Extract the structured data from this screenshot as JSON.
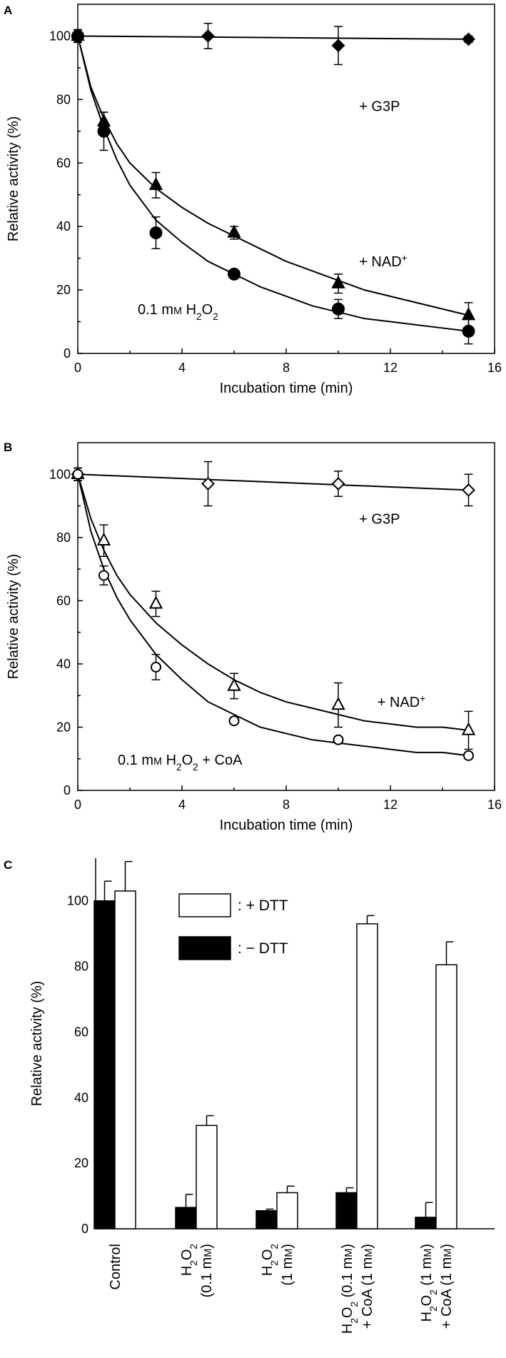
{
  "chart_data": [
    {
      "panel": "A",
      "type": "scatter",
      "xlabel": "Incubation time (min)",
      "ylabel": "Relative activity (%)",
      "xlim": [
        0,
        16
      ],
      "ylim": [
        0,
        110
      ],
      "xticks": [
        "0",
        "4",
        "8",
        "12",
        "16"
      ],
      "yticks": [
        "0",
        "20",
        "40",
        "60",
        "80",
        "100"
      ],
      "annotation": {
        "pre": "0.1 m",
        "unit": "M",
        "post": "  H",
        "sub1": "2",
        "mid": "O",
        "sub2": "2",
        "tail": ""
      },
      "series": [
        {
          "name": "+ G3P",
          "marker": "diamond",
          "fill": "#000000",
          "x": [
            0,
            5,
            10,
            15
          ],
          "y": [
            100,
            100,
            97,
            99
          ],
          "err": [
            2,
            4,
            6,
            1
          ],
          "curve_x": [
            0,
            15
          ],
          "curve_y": [
            100,
            99
          ]
        },
        {
          "name": "+ NAD",
          "sup": "+",
          "marker": "triangle",
          "fill": "#000000",
          "x": [
            0,
            1,
            3,
            6,
            10,
            15
          ],
          "y": [
            100,
            73,
            53,
            38,
            22,
            12
          ],
          "err": [
            2,
            3,
            4,
            2,
            3,
            4
          ],
          "curve_x": [
            0,
            0.5,
            1,
            1.5,
            2,
            3,
            4,
            5,
            6,
            7,
            8,
            9,
            10,
            11,
            12,
            13,
            14,
            15
          ],
          "curve_y": [
            100,
            84,
            74,
            66,
            60,
            52,
            46,
            41,
            37,
            33,
            29,
            26,
            23,
            20,
            18,
            16,
            14,
            12
          ]
        },
        {
          "name": "0.1 mM H2O2",
          "marker": "circle",
          "fill": "#000000",
          "x": [
            0,
            1,
            3,
            6,
            10,
            15
          ],
          "y": [
            100,
            70,
            38,
            25,
            14,
            7
          ],
          "err": [
            2,
            6,
            5,
            1,
            3,
            4
          ],
          "curve_x": [
            0,
            0.5,
            1,
            1.5,
            2,
            3,
            4,
            5,
            6,
            7,
            8,
            9,
            10,
            11,
            12,
            13,
            14,
            15
          ],
          "curve_y": [
            100,
            83,
            71,
            61,
            53,
            42,
            35,
            29,
            25,
            21,
            18,
            15,
            13,
            11,
            10,
            9,
            8,
            7
          ]
        }
      ],
      "labels": [
        {
          "series": 0,
          "text": "+ G3P",
          "x": 10.8,
          "y": 78
        },
        {
          "series": 1,
          "text": "+ NAD",
          "sup": "+",
          "x": 10.8,
          "y": 29
        }
      ]
    },
    {
      "panel": "B",
      "type": "scatter",
      "xlabel": "Incubation time (min)",
      "ylabel": "Relative activity (%)",
      "xlim": [
        0,
        16
      ],
      "ylim": [
        0,
        110
      ],
      "xticks": [
        "0",
        "4",
        "8",
        "12",
        "16"
      ],
      "yticks": [
        "0",
        "20",
        "40",
        "60",
        "80",
        "100"
      ],
      "annotation": {
        "pre": "0.1 m",
        "unit": "M",
        "post": "  H",
        "sub1": "2",
        "mid": "O",
        "sub2": "2",
        "tail": " + CoA"
      },
      "series": [
        {
          "name": "+ G3P",
          "marker": "diamond",
          "fill": "#ffffff",
          "x": [
            0,
            5,
            10,
            15
          ],
          "y": [
            100,
            97,
            97,
            95
          ],
          "err": [
            2,
            7,
            4,
            5
          ],
          "curve_x": [
            0,
            15
          ],
          "curve_y": [
            100,
            95
          ]
        },
        {
          "name": "+ NAD",
          "sup": "+",
          "marker": "triangle",
          "fill": "#ffffff",
          "x": [
            0,
            1,
            3,
            6,
            10,
            15
          ],
          "y": [
            100,
            79,
            59,
            33,
            27,
            19
          ],
          "err": [
            2,
            5,
            4,
            4,
            7,
            6
          ],
          "curve_x": [
            0,
            0.5,
            1,
            1.5,
            2,
            3,
            4,
            5,
            6,
            7,
            8,
            9,
            10,
            11,
            12,
            13,
            14,
            15
          ],
          "curve_y": [
            100,
            86,
            76,
            68,
            62,
            53,
            46,
            40,
            35,
            31,
            28,
            26,
            24,
            22,
            21,
            20,
            20,
            19
          ]
        },
        {
          "name": "0.1 mM H2O2 + CoA",
          "marker": "circle",
          "fill": "#ffffff",
          "x": [
            0,
            1,
            3,
            6,
            10,
            15
          ],
          "y": [
            100,
            68,
            39,
            22,
            16,
            11
          ],
          "err": [
            2,
            3,
            4,
            1,
            1,
            1
          ],
          "curve_x": [
            0,
            0.5,
            1,
            1.5,
            2,
            3,
            4,
            5,
            6,
            7,
            8,
            9,
            10,
            11,
            12,
            13,
            14,
            15
          ],
          "curve_y": [
            100,
            82,
            70,
            61,
            54,
            43,
            35,
            28,
            24,
            20,
            18,
            16,
            15,
            14,
            13,
            12,
            12,
            11
          ]
        }
      ],
      "labels": [
        {
          "series": 0,
          "text": "+ G3P",
          "x": 10.8,
          "y": 86
        },
        {
          "series": 1,
          "text": "+ NAD",
          "sup": "+",
          "x": 11.5,
          "y": 28
        }
      ]
    },
    {
      "panel": "C",
      "type": "bar",
      "ylabel": "Relative activity (%)",
      "ylim": [
        0,
        113
      ],
      "yticks": [
        "0",
        "20",
        "40",
        "60",
        "80",
        "100"
      ],
      "categories": [
        {
          "lines": [
            {
              "text": "Control"
            }
          ]
        },
        {
          "lines": [
            {
              "text": "H",
              "sub": "2",
              "mid": "O",
              "sub2": "2"
            },
            {
              "text": "(0.1 m",
              "unit": "M",
              "tail": ")"
            }
          ]
        },
        {
          "lines": [
            {
              "text": "H",
              "sub": "2",
              "mid": "O",
              "sub2": "2"
            },
            {
              "text": "(1 m",
              "unit": "M",
              "tail": ")"
            }
          ]
        },
        {
          "lines": [
            {
              "text": "H",
              "sub": "2",
              "mid": "O",
              "sub2": "2",
              "tail": " (0.1 m",
              "unit": "M",
              "tail2": ")"
            },
            {
              "text": "+ CoA (1 m",
              "unit": "M",
              "tail": ")"
            }
          ]
        },
        {
          "lines": [
            {
              "text": "H",
              "sub": "2",
              "mid": "O",
              "sub2": "2",
              "tail": " (1 m",
              "unit": "M",
              "tail2": ")"
            },
            {
              "text": "+ CoA (1 m",
              "unit": "M",
              "tail": ")"
            }
          ]
        }
      ],
      "series": [
        {
          "name": ": − DTT",
          "fill": "#000000",
          "values": [
            100,
            6.5,
            5.5,
            11,
            3.5
          ],
          "err": [
            6,
            4,
            0.5,
            1.5,
            4.5
          ]
        },
        {
          "name": ": + DTT",
          "fill": "#ffffff",
          "values": [
            103,
            31.5,
            11,
            93,
            80.5
          ],
          "err": [
            9,
            3,
            2,
            2.5,
            7
          ]
        }
      ],
      "legend": {
        "position": "top-center",
        "order": [
          1,
          0
        ]
      }
    }
  ],
  "panel_letters": [
    "A",
    "B",
    "C"
  ]
}
